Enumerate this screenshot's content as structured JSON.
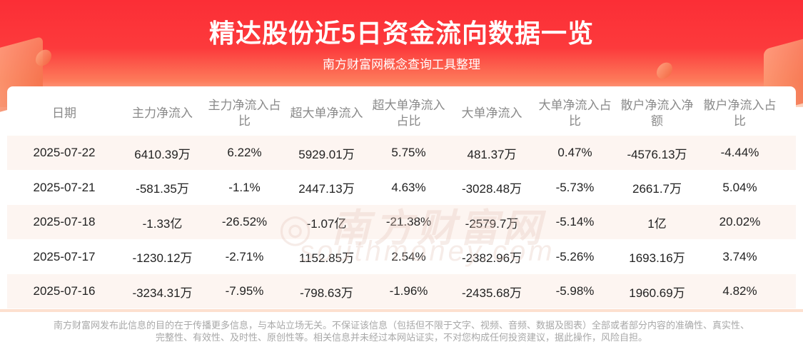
{
  "header": {
    "title": "精达股份近5日资金流向数据一览",
    "subtitle": "南方财富网概念查询工具整理"
  },
  "table": {
    "columns": [
      "日期",
      "主力净流入",
      "主力净流入占比",
      "超大单净流入",
      "超大单净流入占比",
      "大单净流入",
      "大单净流入占比",
      "散户净流入净额",
      "散户净流入占比"
    ],
    "rows": [
      [
        "2025-07-22",
        "6410.39万",
        "6.22%",
        "5929.01万",
        "5.75%",
        "481.37万",
        "0.47%",
        "-4576.13万",
        "-4.44%"
      ],
      [
        "2025-07-21",
        "-581.35万",
        "-1.1%",
        "2447.13万",
        "4.63%",
        "-3028.48万",
        "-5.73%",
        "2661.7万",
        "5.04%"
      ],
      [
        "2025-07-18",
        "-1.33亿",
        "-26.52%",
        "-1.07亿",
        "-21.38%",
        "-2579.7万",
        "-5.14%",
        "1亿",
        "20.02%"
      ],
      [
        "2025-07-17",
        "-1230.12万",
        "-2.71%",
        "1152.85万",
        "2.54%",
        "-2382.96万",
        "-5.26%",
        "1693.16万",
        "3.74%"
      ],
      [
        "2025-07-16",
        "-3234.31万",
        "-7.95%",
        "-798.63万",
        "-1.96%",
        "-2435.68万",
        "-5.98%",
        "1960.69万",
        "4.82%"
      ]
    ]
  },
  "watermark": {
    "cn": "南方财富网",
    "en": "southmoney.com"
  },
  "footer": {
    "disclaimer_line1": "南方财富网发布此信息的目的在于传播更多信息，与本站立场无关。不保证该信息（包括但不限于文字、视频、音频、数据及图表）全部或者部分内容的准确性、真实性、",
    "disclaimer_line2": "完整性、有效性、及时性、原创性等。相关信息并未经过本网站证实，不对您构成任何投资建议，据此操作，风险自担。"
  },
  "colors": {
    "brand_red": "#fb2e36",
    "row_tint": "#fdf5f1"
  }
}
